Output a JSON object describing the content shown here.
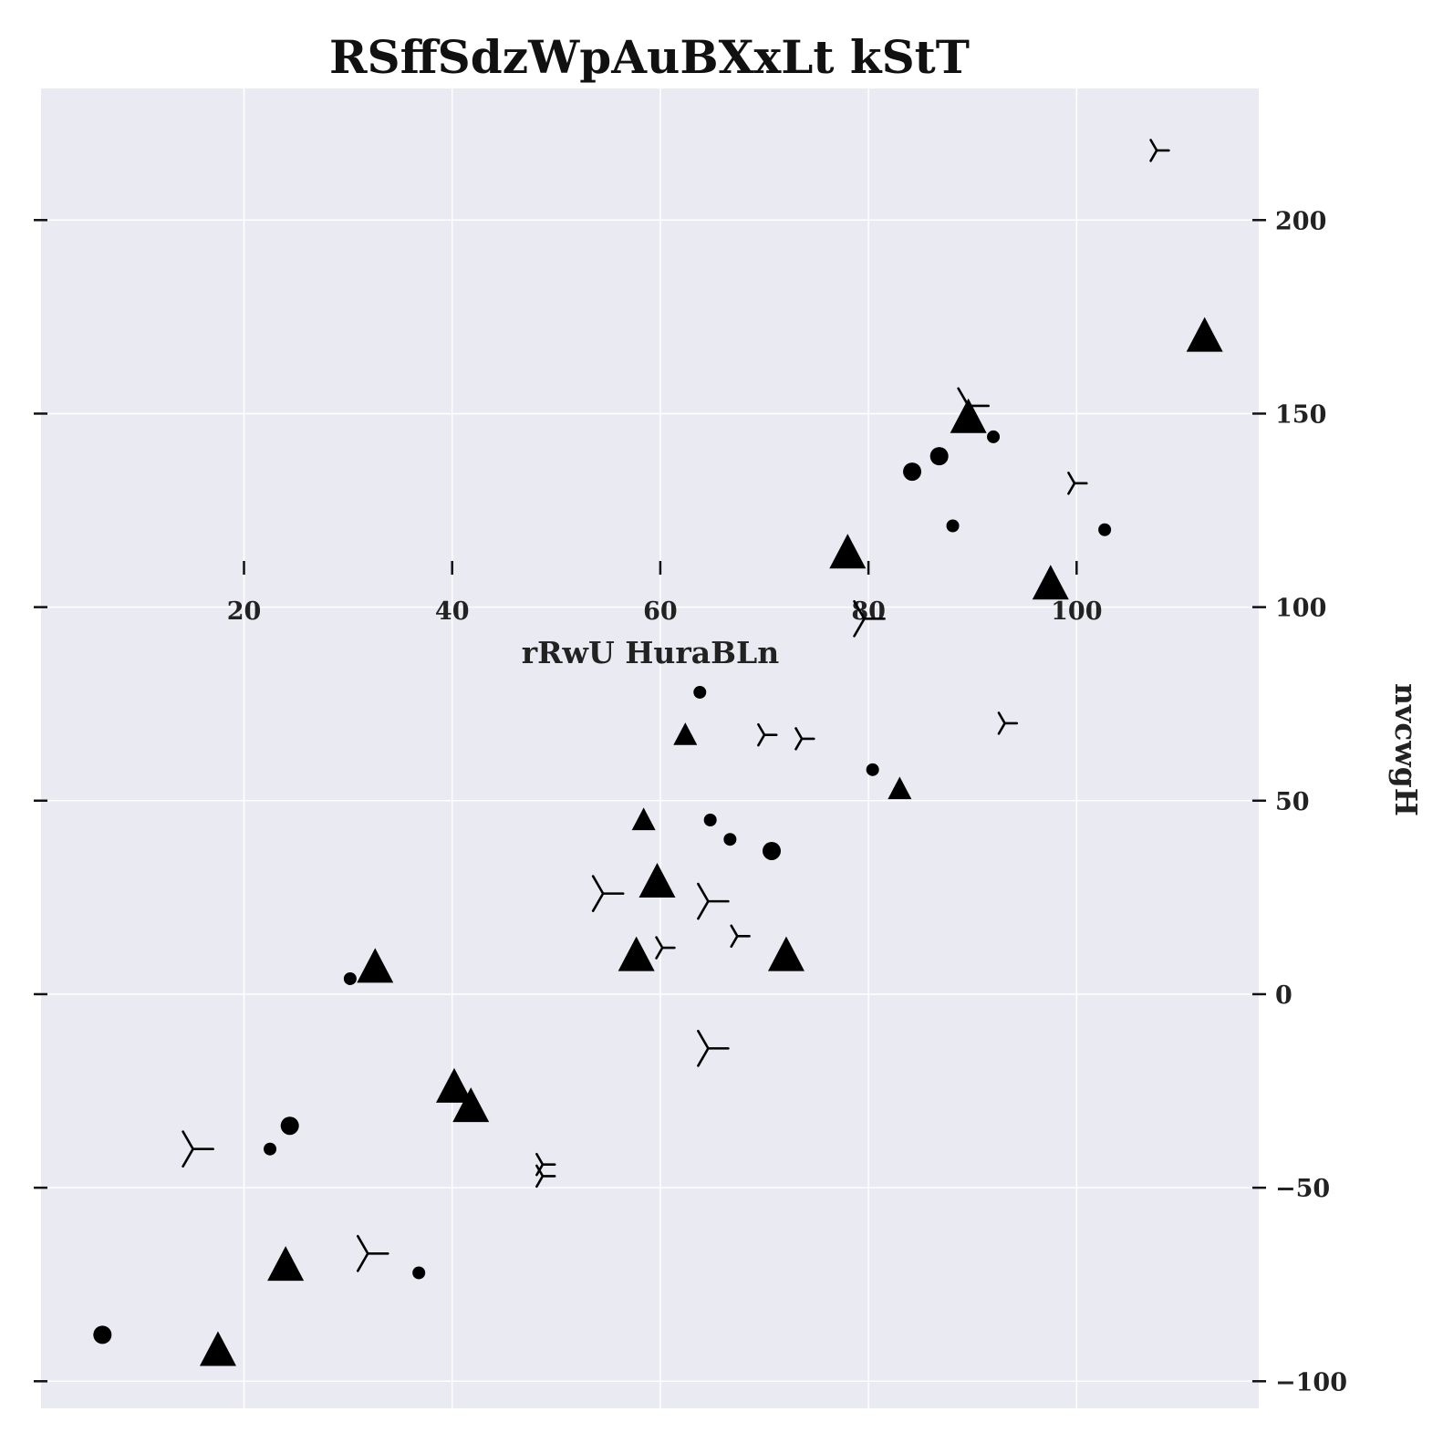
{
  "chart_data": {
    "type": "scatter",
    "title": "RSffSdzWpAuBXxLt kStT",
    "xlabel": "rRwU HuraBLn",
    "ylabel": "nvcwgH",
    "x_ticks": [
      20,
      40,
      60,
      80,
      100
    ],
    "y_ticks": [
      -100,
      -50,
      0,
      50,
      100,
      150,
      200
    ],
    "xlim": [
      0.5,
      117.5
    ],
    "ylim": [
      -107,
      234
    ],
    "grid": true,
    "legend": "none",
    "background": "#eaeaf2",
    "marker_color": "#000000",
    "series": [
      {
        "marker": "circle",
        "points": [
          {
            "x": 6.4,
            "y": -88,
            "s": 1.0
          },
          {
            "x": 24.4,
            "y": -34,
            "s": 1.0
          },
          {
            "x": 22.5,
            "y": -40,
            "s": 0.7
          },
          {
            "x": 30.2,
            "y": 4,
            "s": 0.7
          },
          {
            "x": 36.8,
            "y": -72,
            "s": 0.7
          },
          {
            "x": 63.8,
            "y": 78,
            "s": 0.7
          },
          {
            "x": 64.8,
            "y": 45,
            "s": 0.7
          },
          {
            "x": 66.7,
            "y": 40,
            "s": 0.7
          },
          {
            "x": 70.7,
            "y": 37,
            "s": 1.0
          },
          {
            "x": 80.4,
            "y": 58,
            "s": 0.7
          },
          {
            "x": 84.2,
            "y": 135,
            "s": 1.0
          },
          {
            "x": 86.8,
            "y": 139,
            "s": 1.0
          },
          {
            "x": 88.1,
            "y": 121,
            "s": 0.7
          },
          {
            "x": 92.0,
            "y": 144,
            "s": 0.7
          },
          {
            "x": 102.7,
            "y": 120,
            "s": 0.7
          }
        ]
      },
      {
        "marker": "triangle",
        "points": [
          {
            "x": 17.5,
            "y": -92,
            "s": 1.0
          },
          {
            "x": 24.0,
            "y": -70,
            "s": 1.0
          },
          {
            "x": 32.6,
            "y": 7,
            "s": 1.0
          },
          {
            "x": 40.2,
            "y": -24,
            "s": 1.0
          },
          {
            "x": 41.8,
            "y": -29,
            "s": 1.0
          },
          {
            "x": 57.7,
            "y": 10,
            "s": 1.0
          },
          {
            "x": 58.4,
            "y": 45,
            "s": 0.65
          },
          {
            "x": 59.7,
            "y": 29,
            "s": 1.0
          },
          {
            "x": 62.4,
            "y": 67,
            "s": 0.65
          },
          {
            "x": 72.1,
            "y": 10,
            "s": 1.0
          },
          {
            "x": 78.0,
            "y": 114,
            "s": 1.0
          },
          {
            "x": 83.0,
            "y": 53,
            "s": 0.65
          },
          {
            "x": 89.6,
            "y": 149,
            "s": 1.0
          },
          {
            "x": 97.5,
            "y": 106,
            "s": 1.0
          },
          {
            "x": 112.3,
            "y": 170,
            "s": 1.0
          }
        ]
      },
      {
        "marker": "tri_right",
        "points": [
          {
            "x": 15.1,
            "y": -40,
            "s": 1.0
          },
          {
            "x": 31.9,
            "y": -67,
            "s": 1.0
          },
          {
            "x": 48.7,
            "y": -44,
            "s": 0.6
          },
          {
            "x": 48.7,
            "y": -47,
            "s": 0.6
          },
          {
            "x": 54.5,
            "y": 26,
            "s": 1.0
          },
          {
            "x": 60.2,
            "y": 12,
            "s": 0.6
          },
          {
            "x": 64.6,
            "y": 24,
            "s": 1.0
          },
          {
            "x": 64.6,
            "y": -14,
            "s": 1.0
          },
          {
            "x": 67.4,
            "y": 15,
            "s": 0.6
          },
          {
            "x": 70.0,
            "y": 67,
            "s": 0.6
          },
          {
            "x": 73.6,
            "y": 66,
            "s": 0.6
          },
          {
            "x": 79.6,
            "y": 97,
            "s": 1.0
          },
          {
            "x": 89.6,
            "y": 152,
            "s": 1.0
          },
          {
            "x": 93.1,
            "y": 70,
            "s": 0.6
          },
          {
            "x": 99.8,
            "y": 132,
            "s": 0.6
          },
          {
            "x": 107.7,
            "y": 218,
            "s": 0.6
          }
        ]
      }
    ]
  }
}
